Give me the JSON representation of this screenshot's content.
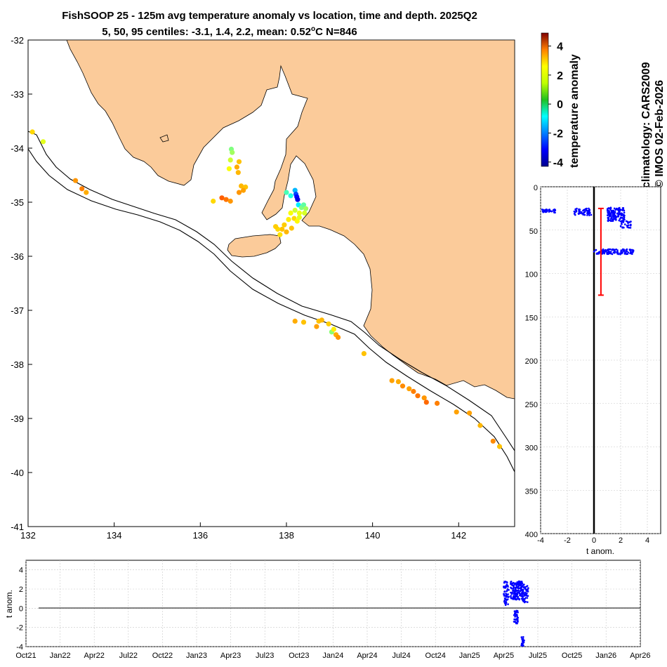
{
  "title_line1": "FishSOOP 25 - 125m avg temperature anomaly vs location, time and depth. 2025Q2",
  "title_line2_prefix": "5, 50, 95 centiles: -3.1, 1.4, 2.2, mean: 0.52",
  "title_line2_sup": "o",
  "title_line2_suffix": "C N=846",
  "side_text_1": "climatology: CARS2009",
  "side_text_2": "© IMOS 02-Feb-2026",
  "colors": {
    "land": "#fbcb9a",
    "depth_points": "#0000ff",
    "time_points": "#0000ff",
    "range_bar": "#ff0000",
    "zero_line": "#000000"
  },
  "chart_data": [
    {
      "id": "map",
      "type": "scatter",
      "xlim": [
        132,
        143.3
      ],
      "ylim": [
        -41,
        -32
      ],
      "xticks": [
        "132",
        "134",
        "136",
        "138",
        "140",
        "142"
      ],
      "yticks": [
        "-32",
        "-33",
        "-34",
        "-35",
        "-36",
        "-37",
        "-38",
        "-39",
        "-40",
        "-41"
      ],
      "points": [
        {
          "lon": 132.1,
          "lat": -33.7,
          "v": 1.8
        },
        {
          "lon": 132.35,
          "lat": -33.88,
          "v": 1.2
        },
        {
          "lon": 133.1,
          "lat": -34.6,
          "v": 2.4
        },
        {
          "lon": 133.25,
          "lat": -34.75,
          "v": 2.6
        },
        {
          "lon": 133.35,
          "lat": -34.82,
          "v": 2.2
        },
        {
          "lon": 136.72,
          "lat": -34.02,
          "v": 0.3
        },
        {
          "lon": 136.74,
          "lat": -34.08,
          "v": 0.6
        },
        {
          "lon": 136.7,
          "lat": -34.22,
          "v": 1.0
        },
        {
          "lon": 136.67,
          "lat": -34.38,
          "v": 1.4
        },
        {
          "lon": 136.9,
          "lat": -34.25,
          "v": 2.0
        },
        {
          "lon": 136.85,
          "lat": -34.35,
          "v": 2.2
        },
        {
          "lon": 136.88,
          "lat": -34.45,
          "v": 2.1
        },
        {
          "lon": 136.95,
          "lat": -34.7,
          "v": 2.1
        },
        {
          "lon": 137.05,
          "lat": -34.72,
          "v": 2.0
        },
        {
          "lon": 137.0,
          "lat": -34.78,
          "v": 2.3
        },
        {
          "lon": 136.9,
          "lat": -34.82,
          "v": 2.4
        },
        {
          "lon": 136.5,
          "lat": -34.92,
          "v": 2.9
        },
        {
          "lon": 136.6,
          "lat": -34.95,
          "v": 2.7
        },
        {
          "lon": 136.3,
          "lat": -34.98,
          "v": 1.8
        },
        {
          "lon": 136.7,
          "lat": -34.98,
          "v": 2.4
        },
        {
          "lon": 138.2,
          "lat": -34.78,
          "v": -1.5
        },
        {
          "lon": 138.22,
          "lat": -34.85,
          "v": -2.5
        },
        {
          "lon": 138.24,
          "lat": -34.9,
          "v": -3.1
        },
        {
          "lon": 138.26,
          "lat": -34.95,
          "v": -3.4
        },
        {
          "lon": 138.1,
          "lat": -34.88,
          "v": -0.6
        },
        {
          "lon": 138.0,
          "lat": -34.82,
          "v": -0.2
        },
        {
          "lon": 138.28,
          "lat": -35.05,
          "v": -1.0
        },
        {
          "lon": 138.35,
          "lat": -35.1,
          "v": 0.3
        },
        {
          "lon": 138.4,
          "lat": -35.05,
          "v": 0.0
        },
        {
          "lon": 138.45,
          "lat": -35.12,
          "v": 0.6
        },
        {
          "lon": 138.2,
          "lat": -35.15,
          "v": 1.0
        },
        {
          "lon": 138.3,
          "lat": -35.2,
          "v": 1.3
        },
        {
          "lon": 138.42,
          "lat": -35.2,
          "v": 1.1
        },
        {
          "lon": 138.1,
          "lat": -35.2,
          "v": 1.4
        },
        {
          "lon": 138.18,
          "lat": -35.3,
          "v": 1.8
        },
        {
          "lon": 138.05,
          "lat": -35.32,
          "v": 1.6
        },
        {
          "lon": 137.95,
          "lat": -35.42,
          "v": 1.9
        },
        {
          "lon": 137.9,
          "lat": -35.5,
          "v": 2.0
        },
        {
          "lon": 137.8,
          "lat": -35.5,
          "v": 1.8
        },
        {
          "lon": 137.85,
          "lat": -35.6,
          "v": 1.7
        },
        {
          "lon": 138.0,
          "lat": -35.55,
          "v": 2.1
        },
        {
          "lon": 138.12,
          "lat": -35.48,
          "v": 2.0
        },
        {
          "lon": 138.25,
          "lat": -35.35,
          "v": 1.5
        },
        {
          "lon": 138.3,
          "lat": -35.28,
          "v": 1.2
        },
        {
          "lon": 137.75,
          "lat": -35.45,
          "v": 1.9
        },
        {
          "lon": 138.2,
          "lat": -37.2,
          "v": 2.2
        },
        {
          "lon": 138.4,
          "lat": -37.22,
          "v": 2.0
        },
        {
          "lon": 138.75,
          "lat": -37.2,
          "v": 2.0
        },
        {
          "lon": 138.82,
          "lat": -37.18,
          "v": 2.1
        },
        {
          "lon": 138.7,
          "lat": -37.3,
          "v": 2.3
        },
        {
          "lon": 138.98,
          "lat": -37.25,
          "v": 1.9
        },
        {
          "lon": 139.05,
          "lat": -37.4,
          "v": 0.4
        },
        {
          "lon": 139.15,
          "lat": -37.45,
          "v": 2.2
        },
        {
          "lon": 139.2,
          "lat": -37.5,
          "v": 2.4
        },
        {
          "lon": 139.1,
          "lat": -37.35,
          "v": 1.6
        },
        {
          "lon": 139.8,
          "lat": -37.8,
          "v": 2.0
        },
        {
          "lon": 140.45,
          "lat": -38.3,
          "v": 2.3
        },
        {
          "lon": 140.6,
          "lat": -38.32,
          "v": 2.2
        },
        {
          "lon": 140.7,
          "lat": -38.4,
          "v": 2.5
        },
        {
          "lon": 140.85,
          "lat": -38.45,
          "v": 2.3
        },
        {
          "lon": 140.95,
          "lat": -38.5,
          "v": 2.6
        },
        {
          "lon": 141.05,
          "lat": -38.58,
          "v": 2.7
        },
        {
          "lon": 141.2,
          "lat": -38.62,
          "v": 2.4
        },
        {
          "lon": 141.25,
          "lat": -38.7,
          "v": 2.8
        },
        {
          "lon": 141.5,
          "lat": -38.72,
          "v": 2.6
        },
        {
          "lon": 141.95,
          "lat": -38.88,
          "v": 2.3
        },
        {
          "lon": 142.25,
          "lat": -38.9,
          "v": 2.3
        },
        {
          "lon": 142.5,
          "lat": -39.13,
          "v": 2.1
        },
        {
          "lon": 142.8,
          "lat": -39.42,
          "v": 2.5
        },
        {
          "lon": 142.95,
          "lat": -39.52,
          "v": 2.0
        }
      ]
    },
    {
      "id": "colorbar",
      "type": "heatmap",
      "label": "temperature anomaly",
      "range": [
        -4.3,
        4.9
      ],
      "ticks": [
        "4",
        "2",
        "0",
        "-2",
        "-4"
      ]
    },
    {
      "id": "depth_profile",
      "type": "scatter",
      "xlabel": "t anom.",
      "xlim": [
        -4,
        5
      ],
      "ylim": [
        0,
        400
      ],
      "xticks": [
        "-4",
        "-2",
        "0",
        "2",
        "4"
      ],
      "yticks": [
        "0",
        "50",
        "100",
        "150",
        "200",
        "250",
        "300",
        "350",
        "400"
      ],
      "clusters": [
        {
          "x_min": -3.9,
          "x_max": -2.9,
          "depth_min": 26,
          "depth_max": 30,
          "n": 40
        },
        {
          "x_min": -1.5,
          "x_max": -0.2,
          "depth_min": 25,
          "depth_max": 33,
          "n": 70
        },
        {
          "x_min": 1.0,
          "x_max": 2.3,
          "depth_min": 24,
          "depth_max": 40,
          "n": 150
        },
        {
          "x_min": 2.0,
          "x_max": 2.8,
          "depth_min": 38,
          "depth_max": 48,
          "n": 30
        },
        {
          "x_min": 0.0,
          "x_max": 3.0,
          "depth_min": 72,
          "depth_max": 78,
          "n": 120
        }
      ],
      "range_bar": {
        "x": 0.52,
        "depth_top": 25,
        "depth_bottom": 125
      }
    },
    {
      "id": "time_series",
      "type": "scatter",
      "ylabel": "t anom.",
      "ylim": [
        -4,
        5
      ],
      "yticks": [
        "4",
        "2",
        "0",
        "-2",
        "-4"
      ],
      "xticks": [
        "Oct21",
        "Jan22",
        "Apr22",
        "Jul22",
        "Oct22",
        "Jan23",
        "Apr23",
        "Jul23",
        "Oct23",
        "Jan24",
        "Apr24",
        "Jul24",
        "Oct24",
        "Jan25",
        "Apr25",
        "Jul25",
        "Oct25",
        "Jan26",
        "Apr26"
      ],
      "clusters": [
        {
          "q_min": 14.0,
          "q_max": 14.15,
          "y_min": 0.3,
          "y_max": 2.8,
          "n": 60
        },
        {
          "q_min": 14.2,
          "q_max": 14.55,
          "y_min": 0.9,
          "y_max": 2.8,
          "n": 160
        },
        {
          "q_min": 14.55,
          "q_max": 14.72,
          "y_min": 0.6,
          "y_max": 2.5,
          "n": 60
        },
        {
          "q_min": 14.3,
          "q_max": 14.42,
          "y_min": -1.6,
          "y_max": -0.2,
          "n": 40
        },
        {
          "q_min": 14.52,
          "q_max": 14.6,
          "y_min": -4.0,
          "y_max": -3.0,
          "n": 20
        }
      ]
    }
  ]
}
